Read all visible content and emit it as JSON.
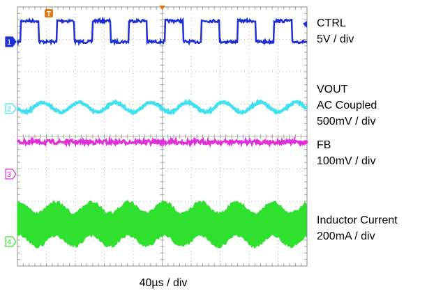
{
  "chart_data": {
    "type": "line",
    "title": "",
    "xlabel": "40µs / div",
    "ylabel": "",
    "grid": true,
    "divisions": {
      "x": 10,
      "y": 8
    },
    "trigger_marker": "T",
    "channels": [
      {
        "number": "1",
        "name": "CTRL",
        "scale": "5V / div",
        "color": "#1e2fd6",
        "waveform": "square",
        "periods_on_screen": 8,
        "duty": 0.5
      },
      {
        "number": "2",
        "name": "VOUT",
        "coupling": "AC Coupled",
        "scale": "500mV / div",
        "color": "#3fe0f0",
        "waveform": "sine",
        "periods_on_screen": 8
      },
      {
        "number": "3",
        "name": "FB",
        "scale": "100mV / div",
        "color": "#e02fd8",
        "waveform": "noise"
      },
      {
        "number": "4",
        "name": "Inductor Current",
        "scale": "200mA / div",
        "color": "#2fe02f",
        "waveform": "modulated-band",
        "periods_on_screen": 8
      }
    ]
  }
}
